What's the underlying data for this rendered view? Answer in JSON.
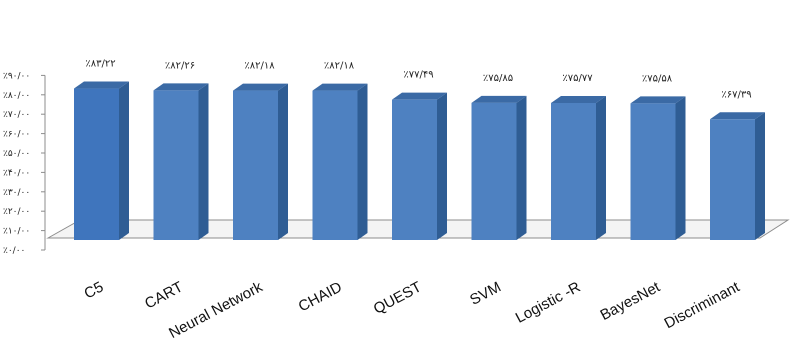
{
  "chart_data": {
    "type": "bar",
    "categories": [
      "C5",
      "CART",
      "Neural Network",
      "CHAID",
      "QUEST",
      "SVM",
      "Logistic -R",
      "BayesNet",
      "Discriminant"
    ],
    "values": [
      83.22,
      82.26,
      82.18,
      82.18,
      77.49,
      75.85,
      75.77,
      75.58,
      67.39
    ],
    "data_labels": [
      "٪۸۳/۲۲",
      "٪۸۲/۲۶",
      "٪۸۲/۱۸",
      "٪۸۲/۱۸",
      "٪۷۷/۴۹",
      "٪۷۵/۸۵",
      "٪۷۵/۷۷",
      "٪۷۵/۵۸",
      "٪۶۷/۳۹"
    ],
    "y_ticks": [
      0,
      10,
      20,
      30,
      40,
      50,
      60,
      70,
      80,
      90
    ],
    "y_tick_labels": [
      "٪۰/۰۰",
      "٪۱۰/۰۰",
      "٪۲۰/۰۰",
      "٪۳۰/۰۰",
      "٪۴۰/۰۰",
      "٪۵۰/۰۰",
      "٪۶۰/۰۰",
      "٪۷۰/۰۰",
      "٪۸۰/۰۰",
      "٪۹۰/۰۰"
    ],
    "ylim": [
      0,
      90
    ],
    "grid": false,
    "legend": "none",
    "colors": {
      "front": "#4e81c1",
      "side": "#2f5d94",
      "top": "#3b6aa5",
      "first_front": "#3f75bd"
    }
  }
}
